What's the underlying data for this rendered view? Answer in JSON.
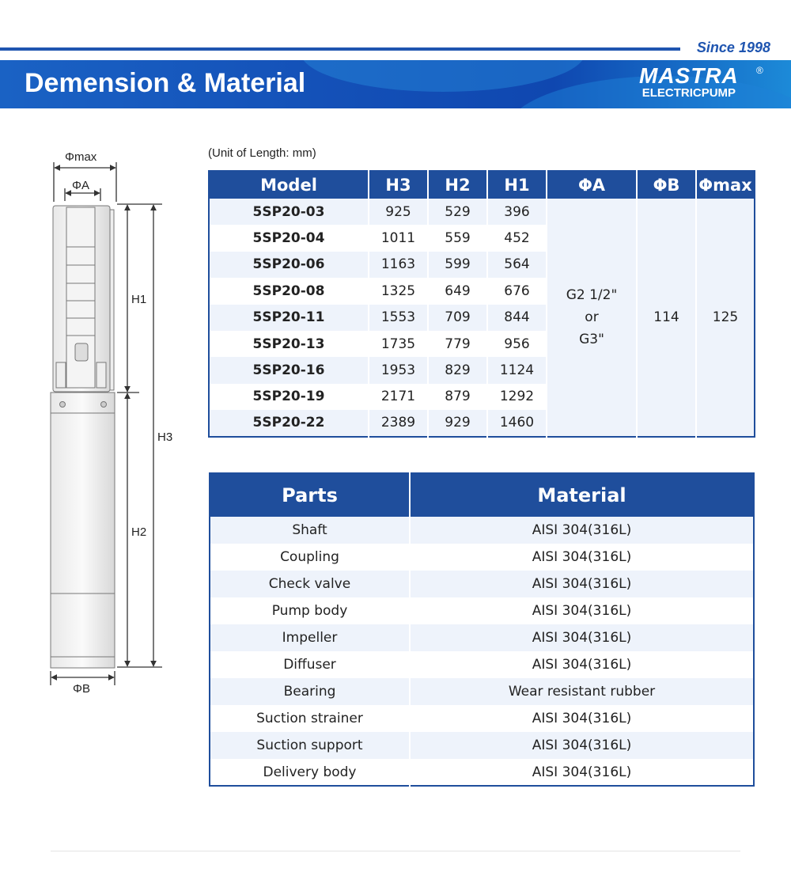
{
  "header": {
    "since": "Since 1998",
    "title": "Demension & Material",
    "logo_mark": "MASTRA",
    "logo_sub": "ELECTRICPUMP",
    "logo_reg": "®",
    "accent_color": "#1f4e9c"
  },
  "diagram": {
    "labels": {
      "phimax": "Φmax",
      "phia": "ΦA",
      "h1": "H1",
      "h2": "H2",
      "h3": "H3",
      "phib": "ΦB"
    }
  },
  "dimensions": {
    "unit_note": "(Unit of Length: mm)",
    "headers": [
      "Model",
      "H3",
      "H2",
      "H1",
      "ΦA",
      "ΦB",
      "Φmax"
    ],
    "rows": [
      [
        "5SP20-03",
        "925",
        "529",
        "396"
      ],
      [
        "5SP20-04",
        "1011",
        "559",
        "452"
      ],
      [
        "5SP20-06",
        "1163",
        "599",
        "564"
      ],
      [
        "5SP20-08",
        "1325",
        "649",
        "676"
      ],
      [
        "5SP20-11",
        "1553",
        "709",
        "844"
      ],
      [
        "5SP20-13",
        "1735",
        "779",
        "956"
      ],
      [
        "5SP20-16",
        "1953",
        "829",
        "1124"
      ],
      [
        "5SP20-19",
        "2171",
        "879",
        "1292"
      ],
      [
        "5SP20-22",
        "2389",
        "929",
        "1460"
      ]
    ],
    "phia_lines": [
      "G2 1/2\"",
      "or",
      "G3\""
    ],
    "phib": "114",
    "phimax": "125"
  },
  "materials": {
    "headers": [
      "Parts",
      "Material"
    ],
    "rows": [
      [
        "Shaft",
        "AISI 304(316L)"
      ],
      [
        "Coupling",
        "AISI 304(316L)"
      ],
      [
        "Check valve",
        "AISI 304(316L)"
      ],
      [
        "Pump body",
        "AISI 304(316L)"
      ],
      [
        "Impeller",
        "AISI 304(316L)"
      ],
      [
        "Diffuser",
        "AISI 304(316L)"
      ],
      [
        "Bearing",
        "Wear resistant rubber"
      ],
      [
        "Suction strainer",
        "AISI 304(316L)"
      ],
      [
        "Suction support",
        "AISI 304(316L)"
      ],
      [
        "Delivery body",
        "AISI 304(316L)"
      ]
    ]
  }
}
